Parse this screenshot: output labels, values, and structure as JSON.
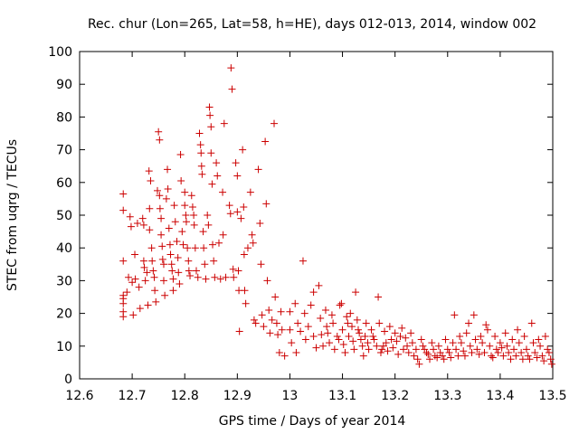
{
  "chart_data": {
    "type": "scatter",
    "title": "Rec. chur (Lon=265, Lat=58, h=HE), days 012-013, 2014, window 002",
    "xlabel": "GPS time / Days of year 2014",
    "ylabel": "STEC from uqrg / TECUs",
    "xlim": [
      12.6,
      13.5
    ],
    "ylim": [
      0,
      100
    ],
    "xticks": [
      "12.6",
      "12.7",
      "12.8",
      "12.9",
      "13",
      "13.1",
      "13.2",
      "13.3",
      "13.4",
      "13.5"
    ],
    "yticks": [
      "0",
      "10",
      "20",
      "30",
      "40",
      "50",
      "60",
      "70",
      "80",
      "90",
      "100"
    ],
    "grid": false,
    "marker": "+",
    "color": "#cc0000",
    "points": [
      [
        12.683,
        56.5
      ],
      [
        12.683,
        51.5
      ],
      [
        12.683,
        36
      ],
      [
        12.683,
        25.5
      ],
      [
        12.683,
        24.5
      ],
      [
        12.683,
        23
      ],
      [
        12.683,
        20.5
      ],
      [
        12.683,
        19
      ],
      [
        12.69,
        26.5
      ],
      [
        12.693,
        31
      ],
      [
        12.696,
        49.5
      ],
      [
        12.698,
        46.5
      ],
      [
        12.7,
        29.5
      ],
      [
        12.702,
        19.5
      ],
      [
        12.705,
        38
      ],
      [
        12.706,
        30.5
      ],
      [
        12.71,
        47.5
      ],
      [
        12.713,
        28
      ],
      [
        12.715,
        21.5
      ],
      [
        12.72,
        49
      ],
      [
        12.722,
        47
      ],
      [
        12.722,
        36
      ],
      [
        12.723,
        34
      ],
      [
        12.725,
        30
      ],
      [
        12.728,
        32.5
      ],
      [
        12.73,
        22.5
      ],
      [
        12.732,
        63.5
      ],
      [
        12.733,
        52
      ],
      [
        12.733,
        45.5
      ],
      [
        12.735,
        60.5
      ],
      [
        12.737,
        40
      ],
      [
        12.738,
        36
      ],
      [
        12.74,
        33
      ],
      [
        12.742,
        31
      ],
      [
        12.743,
        27
      ],
      [
        12.745,
        23.5
      ],
      [
        12.748,
        57.5
      ],
      [
        12.75,
        75.5
      ],
      [
        12.752,
        73
      ],
      [
        12.752,
        56
      ],
      [
        12.753,
        52
      ],
      [
        12.755,
        49
      ],
      [
        12.755,
        44
      ],
      [
        12.757,
        40.5
      ],
      [
        12.758,
        36.5
      ],
      [
        12.76,
        35
      ],
      [
        12.76,
        30
      ],
      [
        12.762,
        25.5
      ],
      [
        12.765,
        55
      ],
      [
        12.767,
        64
      ],
      [
        12.768,
        58
      ],
      [
        12.77,
        46
      ],
      [
        12.772,
        41
      ],
      [
        12.773,
        38
      ],
      [
        12.775,
        35
      ],
      [
        12.776,
        33
      ],
      [
        12.778,
        30.5
      ],
      [
        12.778,
        27
      ],
      [
        12.78,
        53
      ],
      [
        12.782,
        48
      ],
      [
        12.785,
        42
      ],
      [
        12.787,
        37
      ],
      [
        12.788,
        32.5
      ],
      [
        12.79,
        29
      ],
      [
        12.792,
        68.5
      ],
      [
        12.793,
        60.5
      ],
      [
        12.795,
        45
      ],
      [
        12.797,
        41
      ],
      [
        12.8,
        57
      ],
      [
        12.8,
        53
      ],
      [
        12.802,
        50
      ],
      [
        12.803,
        48
      ],
      [
        12.805,
        40
      ],
      [
        12.807,
        36
      ],
      [
        12.808,
        33
      ],
      [
        12.81,
        31.5
      ],
      [
        12.813,
        56
      ],
      [
        12.815,
        52.5
      ],
      [
        12.817,
        50
      ],
      [
        12.818,
        47
      ],
      [
        12.82,
        40
      ],
      [
        12.822,
        33
      ],
      [
        12.825,
        31
      ],
      [
        12.828,
        75
      ],
      [
        12.83,
        71.5
      ],
      [
        12.831,
        69
      ],
      [
        12.832,
        65
      ],
      [
        12.833,
        62.5
      ],
      [
        12.835,
        45
      ],
      [
        12.836,
        40
      ],
      [
        12.838,
        35
      ],
      [
        12.84,
        30.5
      ],
      [
        12.843,
        50
      ],
      [
        12.845,
        47
      ],
      [
        12.847,
        83
      ],
      [
        12.848,
        80.5
      ],
      [
        12.85,
        77
      ],
      [
        12.85,
        69
      ],
      [
        12.852,
        59.5
      ],
      [
        12.853,
        41
      ],
      [
        12.855,
        36
      ],
      [
        12.857,
        31
      ],
      [
        12.86,
        66
      ],
      [
        12.862,
        62
      ],
      [
        12.865,
        41.5
      ],
      [
        12.868,
        30.5
      ],
      [
        12.872,
        57
      ],
      [
        12.873,
        44
      ],
      [
        12.875,
        78
      ],
      [
        12.878,
        31
      ],
      [
        12.885,
        53
      ],
      [
        12.887,
        50.5
      ],
      [
        12.888,
        95
      ],
      [
        12.89,
        88.5
      ],
      [
        12.892,
        33.5
      ],
      [
        12.893,
        31
      ],
      [
        12.897,
        66
      ],
      [
        12.9,
        62
      ],
      [
        12.9,
        51
      ],
      [
        12.902,
        33
      ],
      [
        12.903,
        27
      ],
      [
        12.904,
        14.5
      ],
      [
        12.907,
        49
      ],
      [
        12.91,
        70
      ],
      [
        12.912,
        52.5
      ],
      [
        12.913,
        38
      ],
      [
        12.914,
        27
      ],
      [
        12.916,
        23
      ],
      [
        12.92,
        40
      ],
      [
        12.925,
        57
      ],
      [
        12.928,
        44
      ],
      [
        12.93,
        41.5
      ],
      [
        12.932,
        18
      ],
      [
        12.935,
        17
      ],
      [
        12.94,
        64
      ],
      [
        12.943,
        47.5
      ],
      [
        12.945,
        35
      ],
      [
        12.947,
        19.5
      ],
      [
        12.95,
        16
      ],
      [
        12.953,
        72.5
      ],
      [
        12.955,
        53.5
      ],
      [
        12.957,
        30
      ],
      [
        12.96,
        21
      ],
      [
        12.962,
        14
      ],
      [
        12.966,
        18
      ],
      [
        12.97,
        78
      ],
      [
        12.972,
        25
      ],
      [
        12.975,
        17
      ],
      [
        12.977,
        13.5
      ],
      [
        12.98,
        8
      ],
      [
        12.983,
        20.5
      ],
      [
        12.985,
        15
      ],
      [
        12.99,
        7
      ],
      [
        13.0,
        20.5
      ],
      [
        13.0,
        15
      ],
      [
        13.003,
        11
      ],
      [
        13.01,
        23
      ],
      [
        13.012,
        8
      ],
      [
        13.015,
        17
      ],
      [
        13.02,
        14.5
      ],
      [
        13.025,
        36
      ],
      [
        13.028,
        20
      ],
      [
        13.03,
        12
      ],
      [
        13.035,
        16
      ],
      [
        13.04,
        22.5
      ],
      [
        13.045,
        26.5
      ],
      [
        13.045,
        13
      ],
      [
        13.05,
        9.5
      ],
      [
        13.055,
        28.5
      ],
      [
        13.058,
        18.5
      ],
      [
        13.06,
        13.5
      ],
      [
        13.063,
        10
      ],
      [
        13.068,
        21
      ],
      [
        13.07,
        16
      ],
      [
        13.072,
        14
      ],
      [
        13.075,
        11
      ],
      [
        13.08,
        19.5
      ],
      [
        13.082,
        17
      ],
      [
        13.085,
        9
      ],
      [
        13.09,
        13
      ],
      [
        13.093,
        12
      ],
      [
        13.095,
        22.5
      ],
      [
        13.098,
        23
      ],
      [
        13.1,
        15
      ],
      [
        13.102,
        10.5
      ],
      [
        13.105,
        8
      ],
      [
        13.108,
        19
      ],
      [
        13.11,
        17
      ],
      [
        13.112,
        13
      ],
      [
        13.115,
        20
      ],
      [
        13.118,
        16
      ],
      [
        13.12,
        11.5
      ],
      [
        13.122,
        9
      ],
      [
        13.125,
        26.5
      ],
      [
        13.128,
        18
      ],
      [
        13.13,
        15
      ],
      [
        13.132,
        14
      ],
      [
        13.135,
        12
      ],
      [
        13.138,
        10
      ],
      [
        13.14,
        7
      ],
      [
        13.143,
        13
      ],
      [
        13.145,
        17
      ],
      [
        13.148,
        11
      ],
      [
        13.15,
        9
      ],
      [
        13.155,
        15
      ],
      [
        13.158,
        13
      ],
      [
        13.16,
        12
      ],
      [
        13.165,
        10
      ],
      [
        13.168,
        25
      ],
      [
        13.17,
        17
      ],
      [
        13.173,
        8
      ],
      [
        13.175,
        9
      ],
      [
        13.178,
        10
      ],
      [
        13.18,
        14.5
      ],
      [
        13.183,
        11
      ],
      [
        13.186,
        8.5
      ],
      [
        13.19,
        16
      ],
      [
        13.193,
        12
      ],
      [
        13.196,
        9.5
      ],
      [
        13.2,
        14
      ],
      [
        13.203,
        11.5
      ],
      [
        13.206,
        7.5
      ],
      [
        13.21,
        13
      ],
      [
        13.213,
        15.5
      ],
      [
        13.216,
        9
      ],
      [
        13.22,
        12.5
      ],
      [
        13.223,
        10
      ],
      [
        13.226,
        8
      ],
      [
        13.23,
        14
      ],
      [
        13.233,
        11
      ],
      [
        13.236,
        7
      ],
      [
        13.24,
        9
      ],
      [
        13.243,
        6
      ],
      [
        13.246,
        4.5
      ],
      [
        13.25,
        12
      ],
      [
        13.253,
        10
      ],
      [
        13.256,
        9
      ],
      [
        13.26,
        8
      ],
      [
        13.263,
        7.5
      ],
      [
        13.266,
        6
      ],
      [
        13.27,
        11
      ],
      [
        13.273,
        9
      ],
      [
        13.276,
        7
      ],
      [
        13.28,
        6.5
      ],
      [
        13.283,
        10
      ],
      [
        13.286,
        8
      ],
      [
        13.29,
        7
      ],
      [
        13.293,
        6
      ],
      [
        13.296,
        12
      ],
      [
        13.3,
        9
      ],
      [
        13.303,
        8
      ],
      [
        13.306,
        6.5
      ],
      [
        13.31,
        11
      ],
      [
        13.313,
        19.5
      ],
      [
        13.316,
        9
      ],
      [
        13.32,
        7
      ],
      [
        13.323,
        13
      ],
      [
        13.326,
        11
      ],
      [
        13.33,
        8.5
      ],
      [
        13.333,
        7
      ],
      [
        13.336,
        14
      ],
      [
        13.34,
        17
      ],
      [
        13.343,
        10
      ],
      [
        13.346,
        8
      ],
      [
        13.35,
        19.5
      ],
      [
        13.353,
        12
      ],
      [
        13.356,
        9
      ],
      [
        13.36,
        7.5
      ],
      [
        13.363,
        13
      ],
      [
        13.366,
        11
      ],
      [
        13.37,
        8
      ],
      [
        13.373,
        16.5
      ],
      [
        13.376,
        15
      ],
      [
        13.38,
        10
      ],
      [
        13.383,
        7
      ],
      [
        13.386,
        6.5
      ],
      [
        13.39,
        13
      ],
      [
        13.393,
        9
      ],
      [
        13.396,
        8
      ],
      [
        13.4,
        11
      ],
      [
        13.403,
        9.5
      ],
      [
        13.406,
        7
      ],
      [
        13.41,
        14
      ],
      [
        13.413,
        10
      ],
      [
        13.416,
        8
      ],
      [
        13.42,
        6
      ],
      [
        13.423,
        12
      ],
      [
        13.426,
        9
      ],
      [
        13.43,
        7
      ],
      [
        13.433,
        15
      ],
      [
        13.436,
        11
      ],
      [
        13.44,
        8
      ],
      [
        13.443,
        6
      ],
      [
        13.446,
        13
      ],
      [
        13.45,
        9
      ],
      [
        13.453,
        7
      ],
      [
        13.456,
        6
      ],
      [
        13.46,
        17
      ],
      [
        13.463,
        11
      ],
      [
        13.466,
        8
      ],
      [
        13.47,
        6.5
      ],
      [
        13.473,
        12
      ],
      [
        13.476,
        10
      ],
      [
        13.48,
        7
      ],
      [
        13.483,
        5.5
      ],
      [
        13.486,
        13
      ],
      [
        13.49,
        9
      ],
      [
        13.493,
        8
      ],
      [
        13.496,
        6
      ],
      [
        13.498,
        4.5
      ]
    ]
  }
}
